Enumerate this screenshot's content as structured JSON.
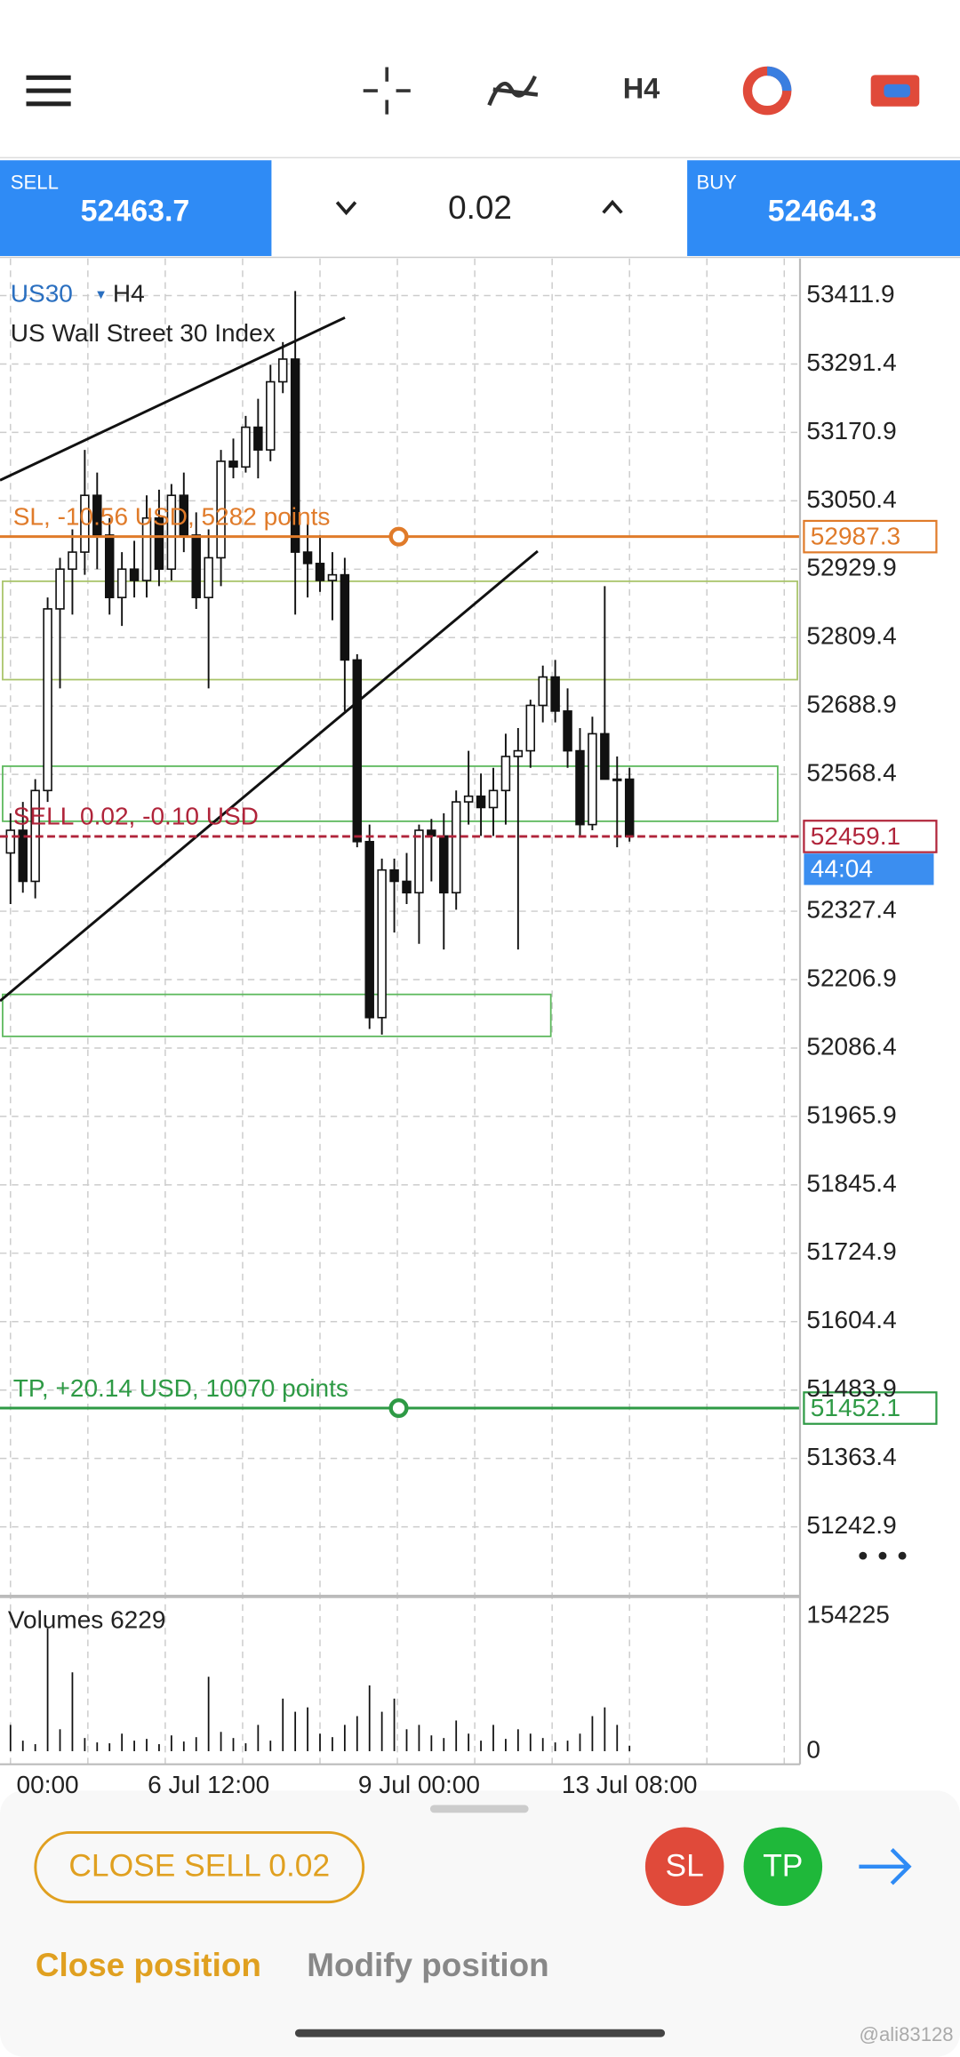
{
  "toolbar": {
    "timeframe": "H4"
  },
  "trade_panel": {
    "sell_label": "SELL",
    "sell_price": 52463.7,
    "volume": 0.02,
    "buy_label": "BUY",
    "buy_price": 52464.3
  },
  "chart_data": {
    "type": "candlestick",
    "symbol": "US30",
    "timeframe": "H4",
    "title": "US Wall Street 30 Index",
    "categories": [
      null,
      null,
      null,
      "00:00",
      null,
      null,
      null,
      null,
      null,
      null,
      null,
      null,
      null,
      null,
      null,
      null,
      "6 Jul 12:00",
      null,
      null,
      null,
      null,
      null,
      null,
      null,
      null,
      null,
      null,
      null,
      null,
      null,
      null,
      null,
      null,
      "9 Jul 00:00",
      null,
      null,
      null,
      null,
      null,
      null,
      null,
      null,
      null,
      null,
      null,
      null,
      null,
      null,
      null,
      null,
      "13 Jul 08:00"
    ],
    "open": [
      52430,
      52470,
      52380,
      52540,
      52860,
      52930,
      52960,
      53060,
      52990,
      52880,
      52930,
      52910,
      53020,
      52930,
      53060,
      52990,
      52880,
      52950,
      53120,
      53110,
      53180,
      53140,
      53260,
      53300,
      52960,
      52940,
      52910,
      52920,
      52770,
      52450,
      52140,
      52400,
      52380,
      52360,
      52470,
      52460,
      52360,
      52520,
      52530,
      52510,
      52540,
      52600,
      52610,
      52690,
      52740,
      52680,
      52610,
      52480,
      52640,
      52560,
      52560
    ],
    "high": [
      52500,
      52520,
      52560,
      52880,
      52950,
      53000,
      53140,
      53100,
      53020,
      52960,
      52980,
      53060,
      53070,
      53080,
      53100,
      53030,
      53000,
      53140,
      53160,
      53200,
      53230,
      53290,
      53330,
      53420,
      53010,
      52990,
      52960,
      52950,
      52780,
      52480,
      52420,
      52420,
      52430,
      52480,
      52490,
      52500,
      52540,
      52610,
      52570,
      52580,
      52640,
      52650,
      52700,
      52760,
      52770,
      52720,
      52650,
      52670,
      52900,
      52600,
      52580
    ],
    "low": [
      52340,
      52360,
      52350,
      52520,
      52720,
      52850,
      52920,
      52930,
      52850,
      52830,
      52880,
      52880,
      52900,
      52910,
      52960,
      52860,
      52720,
      52900,
      53090,
      53100,
      53090,
      53120,
      53240,
      52850,
      52880,
      52890,
      52840,
      52680,
      52440,
      52120,
      52110,
      52290,
      52340,
      52270,
      52380,
      52260,
      52330,
      52480,
      52460,
      52460,
      52480,
      52260,
      52580,
      52660,
      52660,
      52580,
      52460,
      52470,
      52580,
      52440,
      52450
    ],
    "close": [
      52470,
      52380,
      52540,
      52860,
      52930,
      52960,
      53060,
      52990,
      52880,
      52930,
      52910,
      53020,
      52930,
      53060,
      52990,
      52880,
      52950,
      53120,
      53110,
      53180,
      53140,
      53260,
      53300,
      52960,
      52940,
      52910,
      52920,
      52770,
      52450,
      52140,
      52400,
      52380,
      52360,
      52470,
      52460,
      52360,
      52520,
      52530,
      52510,
      52540,
      52600,
      52610,
      52690,
      52740,
      52680,
      52610,
      52480,
      52640,
      52560,
      52560,
      52459.1
    ],
    "ylim": [
      51125,
      53477
    ],
    "yticks": [
      53411.9,
      53291.4,
      53170.9,
      53050.4,
      52929.9,
      52809.4,
      52688.9,
      52568.4,
      52327.4,
      52206.9,
      52086.4,
      51965.9,
      51845.4,
      51724.9,
      51604.4,
      51483.9,
      51363.4,
      51242.9
    ],
    "grid": true,
    "sl_label": "SL, -10.56 USD, 5282 points",
    "sl_price": 52987.3,
    "position_label": "SELL 0.02,  -0.10 USD",
    "current_price": 52459.1,
    "countdown": "44:04",
    "tp_label": "TP, +20.14 USD, 10070 points",
    "tp_price": 51452.1,
    "volume_title": "Volumes 6229",
    "volumes": [
      30000,
      12000,
      8000,
      140000,
      25000,
      90000,
      15000,
      10000,
      9000,
      20000,
      12000,
      14000,
      8000,
      18000,
      11000,
      16000,
      85000,
      22000,
      15000,
      9000,
      30000,
      12000,
      60000,
      45000,
      50000,
      20000,
      16000,
      30000,
      40000,
      75000,
      45000,
      60000,
      25000,
      30000,
      18000,
      15000,
      35000,
      20000,
      12000,
      30000,
      14000,
      25000,
      20000,
      15000,
      10000,
      12000,
      20000,
      40000,
      50000,
      30000,
      6229
    ],
    "volume_ylim": [
      0,
      154225
    ],
    "volume_yticks": [
      154225,
      0
    ]
  },
  "bottom": {
    "close_button": "CLOSE SELL 0.02",
    "sl_button": "SL",
    "tp_button": "TP",
    "tabs": [
      "Close position",
      "Modify position"
    ],
    "watermark": "@ali83128"
  }
}
